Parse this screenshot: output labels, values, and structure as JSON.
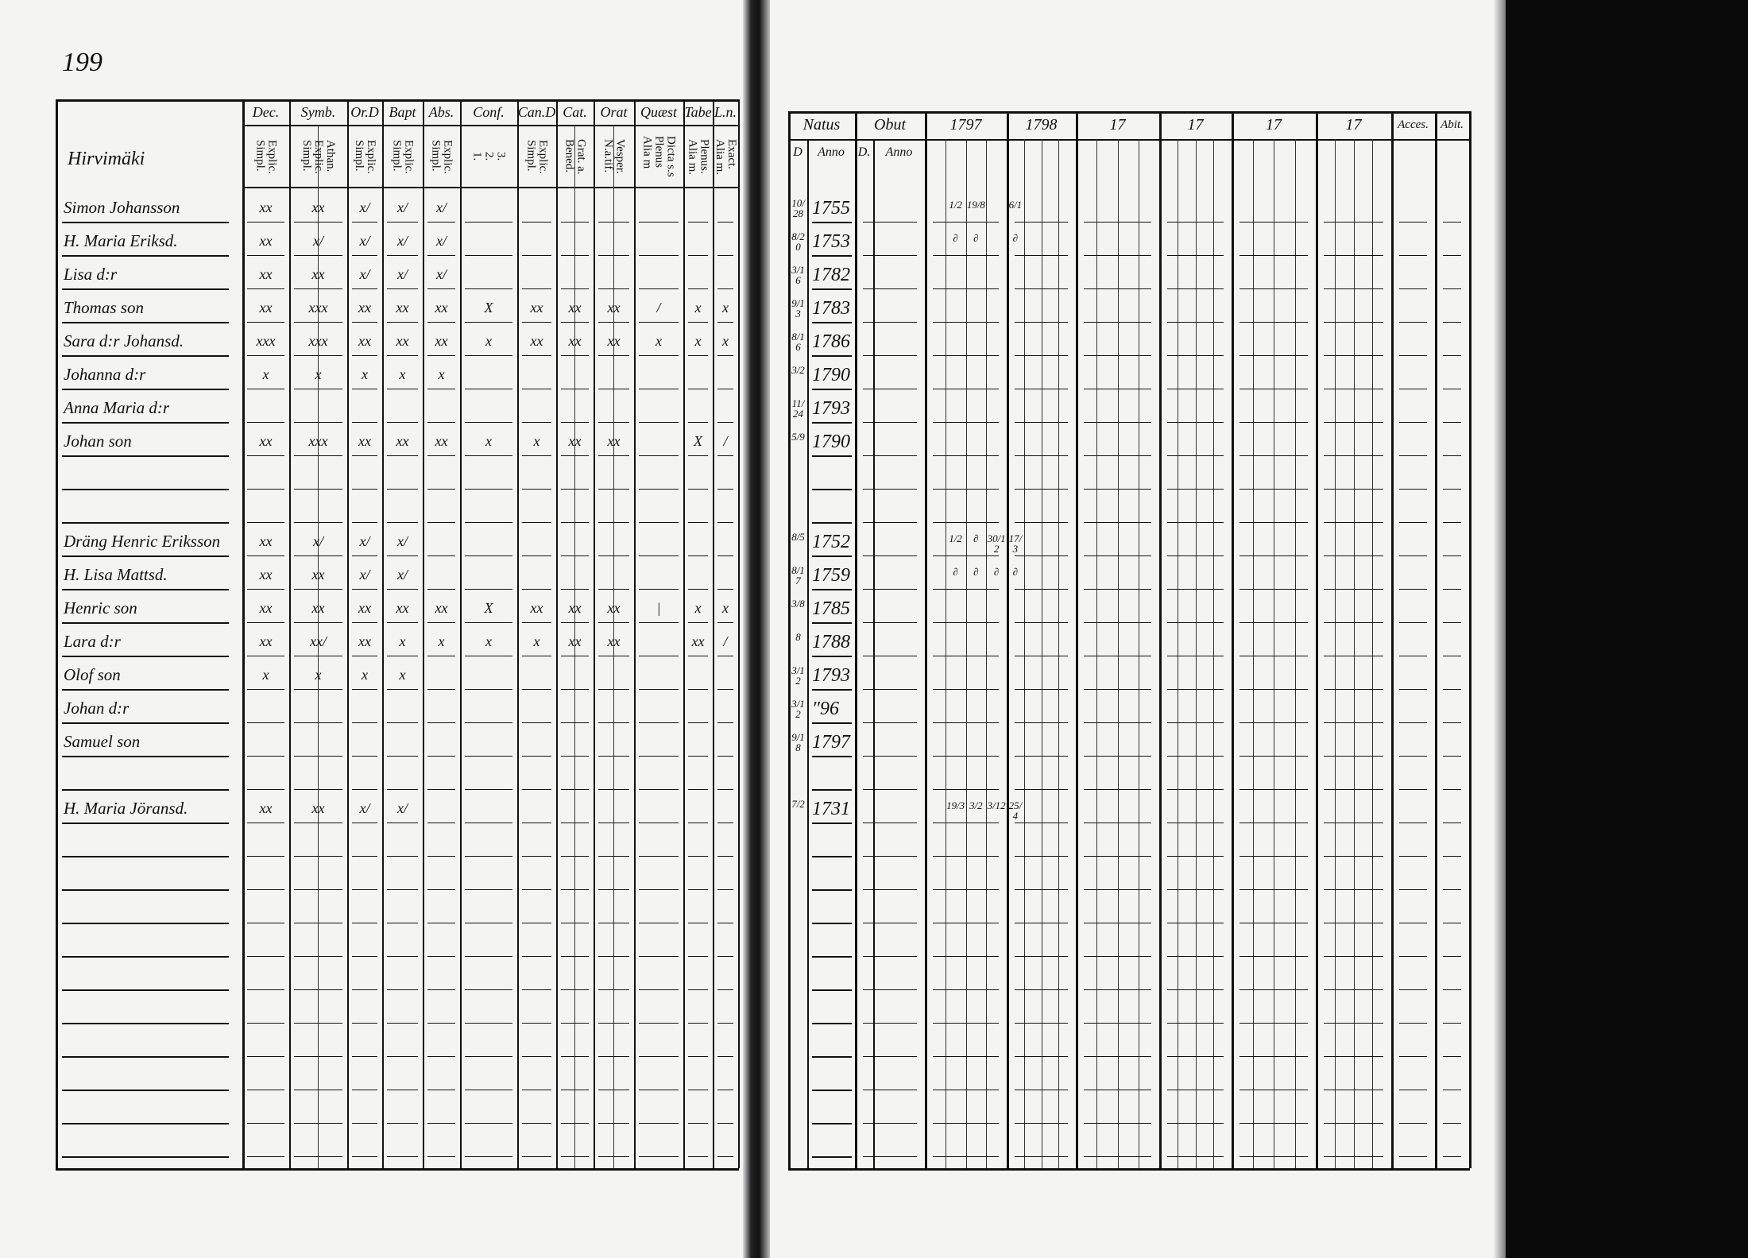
{
  "page_number": "199",
  "left_page": {
    "village": "Hirvimäki",
    "columns": [
      {
        "label": "Dec.",
        "sub": "Explic.\nSimpl."
      },
      {
        "label": "Symb.",
        "sub": "Athan.\nExplic.\nSimpl."
      },
      {
        "label": "Or.D",
        "sub": "Explic.\nSimpl."
      },
      {
        "label": "Bapt",
        "sub": "Explic.\nSimpl."
      },
      {
        "label": "Abs.",
        "sub": "Explic.\nSimpl."
      },
      {
        "label": "Conf.",
        "sub": "3.\n2.\n1."
      },
      {
        "label": "Can.D",
        "sub": "Explic.\nSimpl."
      },
      {
        "label": "Cat.",
        "sub": "Grat. a.\nBened."
      },
      {
        "label": "Orat",
        "sub": "Vesper.\nN.a.tif."
      },
      {
        "label": "Quæst",
        "sub": "Dicta s.s\nPlenus\nAlia m"
      },
      {
        "label": "Tabe",
        "sub": "Plenus.\nAlia m."
      },
      {
        "label": "L.n.",
        "sub": "Exact.\nAlia m."
      }
    ],
    "rows": [
      {
        "name": "Simon Johansson",
        "marks": [
          "xx",
          "xx",
          "x/",
          "x/",
          "x/",
          "",
          "",
          "",
          "",
          "",
          "",
          ""
        ]
      },
      {
        "name": "H. Maria Eriksd.",
        "marks": [
          "xx",
          "x/",
          "x/",
          "x/",
          "x/",
          "",
          "",
          "",
          "",
          "",
          "",
          ""
        ]
      },
      {
        "name": "Lisa d:r",
        "marks": [
          "xx",
          "xx",
          "x/",
          "x/",
          "x/",
          "",
          "",
          "",
          "",
          "",
          "",
          ""
        ]
      },
      {
        "name": "Thomas son",
        "marks": [
          "xx",
          "xxx",
          "xx",
          "xx",
          "xx",
          "X",
          "xx",
          "xx",
          "xx",
          "/",
          "x",
          "x"
        ]
      },
      {
        "name": "Sara d:r Johansd.",
        "marks": [
          "xxx",
          "xxx",
          "xx",
          "xx",
          "xx",
          "x",
          "xx",
          "xx",
          "xx",
          "x",
          "x",
          "x"
        ]
      },
      {
        "name": "Johanna d:r",
        "marks": [
          "x",
          "x",
          "x",
          "x",
          "x",
          "",
          "",
          "",
          "",
          "",
          "",
          ""
        ]
      },
      {
        "name": "Anna Maria d:r",
        "marks": [
          "",
          "",
          "",
          "",
          "",
          "",
          "",
          "",
          "",
          "",
          "",
          ""
        ]
      },
      {
        "name": "Johan son",
        "marks": [
          "xx",
          "xxx",
          "xx",
          "xx",
          "xx",
          "x",
          "x",
          "xx",
          "xx",
          "",
          "X",
          "/"
        ]
      },
      {
        "name": "",
        "marks": []
      },
      {
        "name": "",
        "marks": []
      },
      {
        "name": "Dräng Henric Eriksson",
        "marks": [
          "xx",
          "x/",
          "x/",
          "x/",
          "",
          "",
          "",
          "",
          "",
          "",
          "",
          ""
        ]
      },
      {
        "name": "H. Lisa Mattsd.",
        "marks": [
          "xx",
          "xx",
          "x/",
          "x/",
          "",
          "",
          "",
          "",
          "",
          "",
          "",
          ""
        ]
      },
      {
        "name": "Henric son",
        "marks": [
          "xx",
          "xx",
          "xx",
          "xx",
          "xx",
          "X",
          "xx",
          "xx",
          "xx",
          "|",
          "x",
          "x"
        ]
      },
      {
        "name": "Lara d:r",
        "marks": [
          "xx",
          "xx/",
          "xx",
          "x",
          "x",
          "x",
          "x",
          "xx",
          "xx",
          "",
          "xx",
          "/"
        ]
      },
      {
        "name": "Olof son",
        "marks": [
          "x",
          "x",
          "x",
          "x",
          "",
          "",
          "",
          "",
          "",
          "",
          "",
          ""
        ]
      },
      {
        "name": "Johan d:r",
        "marks": []
      },
      {
        "name": "Samuel son",
        "marks": []
      },
      {
        "name": "",
        "marks": []
      },
      {
        "name": "H. Maria Jöransd.",
        "marks": [
          "xx",
          "xx",
          "x/",
          "x/",
          "",
          "",
          "",
          "",
          "",
          "",
          "",
          ""
        ]
      }
    ]
  },
  "right_page": {
    "headers": [
      "Natus",
      "Obut",
      "1797",
      "1798",
      "17",
      "17",
      "17",
      "17",
      "Acces.",
      "Abit."
    ],
    "subheaders": [
      "D",
      "Anno",
      "D.",
      "Anno"
    ],
    "rows": [
      {
        "d": "10/28",
        "anno": "1755",
        "y1797": [
          "",
          "1/2",
          "19/8",
          ""
        ],
        "y1798": [
          "6/1",
          "",
          "",
          ""
        ]
      },
      {
        "d": "8/20",
        "anno": "1753",
        "y1797": [
          "",
          "∂",
          "∂",
          ""
        ],
        "y1798": [
          "∂",
          "",
          "",
          ""
        ]
      },
      {
        "d": "3/16",
        "anno": "1782",
        "y1797": [
          "",
          "",
          "",
          ""
        ],
        "y1798": [
          "",
          "",
          "",
          ""
        ]
      },
      {
        "d": "9/13",
        "anno": "1783",
        "y1797": [
          "",
          "",
          "",
          ""
        ],
        "y1798": [
          "",
          "",
          "",
          ""
        ]
      },
      {
        "d": "8/16",
        "anno": "1786",
        "y1797": [
          "",
          "",
          "",
          ""
        ],
        "y1798": [
          "",
          "",
          "",
          ""
        ]
      },
      {
        "d": "3/2",
        "anno": "1790",
        "y1797": [
          "",
          "",
          "",
          ""
        ],
        "y1798": [
          "",
          "",
          "",
          ""
        ]
      },
      {
        "d": "11/24",
        "anno": "1793",
        "y1797": [
          "",
          "",
          "",
          ""
        ],
        "y1798": [
          "",
          "",
          "",
          ""
        ]
      },
      {
        "d": "5/9",
        "anno": "1790",
        "y1797": [
          "",
          "",
          "",
          ""
        ],
        "y1798": [
          "",
          "",
          "",
          ""
        ]
      },
      {
        "d": "",
        "anno": "",
        "y1797": [],
        "y1798": []
      },
      {
        "d": "",
        "anno": "",
        "y1797": [],
        "y1798": []
      },
      {
        "d": "8/5",
        "anno": "1752",
        "y1797": [
          "",
          "1/2",
          "∂",
          "30/12"
        ],
        "y1798": [
          "17/3",
          "",
          "",
          ""
        ]
      },
      {
        "d": "8/17",
        "anno": "1759",
        "y1797": [
          "",
          "∂",
          "∂",
          "∂"
        ],
        "y1798": [
          "∂",
          "",
          "",
          ""
        ]
      },
      {
        "d": "3/8",
        "anno": "1785",
        "y1797": [
          "",
          "",
          "",
          ""
        ],
        "y1798": [
          "",
          "",
          "",
          ""
        ]
      },
      {
        "d": "8",
        "anno": "1788",
        "y1797": [
          "",
          "",
          "",
          ""
        ],
        "y1798": [
          "",
          "",
          "",
          ""
        ]
      },
      {
        "d": "3/12",
        "anno": "1793",
        "y1797": [
          "",
          "",
          "",
          ""
        ],
        "y1798": [
          "",
          "",
          "",
          ""
        ]
      },
      {
        "d": "3/12",
        "anno": "″96",
        "y1797": [
          "",
          "",
          "",
          ""
        ],
        "y1798": [
          "",
          "",
          "",
          ""
        ]
      },
      {
        "d": "9/18",
        "anno": "1797",
        "y1797": [
          "",
          "",
          "",
          ""
        ],
        "y1798": [
          "",
          "",
          "",
          ""
        ]
      },
      {
        "d": "",
        "anno": "",
        "y1797": [],
        "y1798": []
      },
      {
        "d": "7/2",
        "anno": "1731",
        "y1797": [
          "",
          "19/3",
          "3/2",
          "3/12"
        ],
        "y1798": [
          "25/4",
          "",
          "",
          ""
        ]
      }
    ]
  }
}
